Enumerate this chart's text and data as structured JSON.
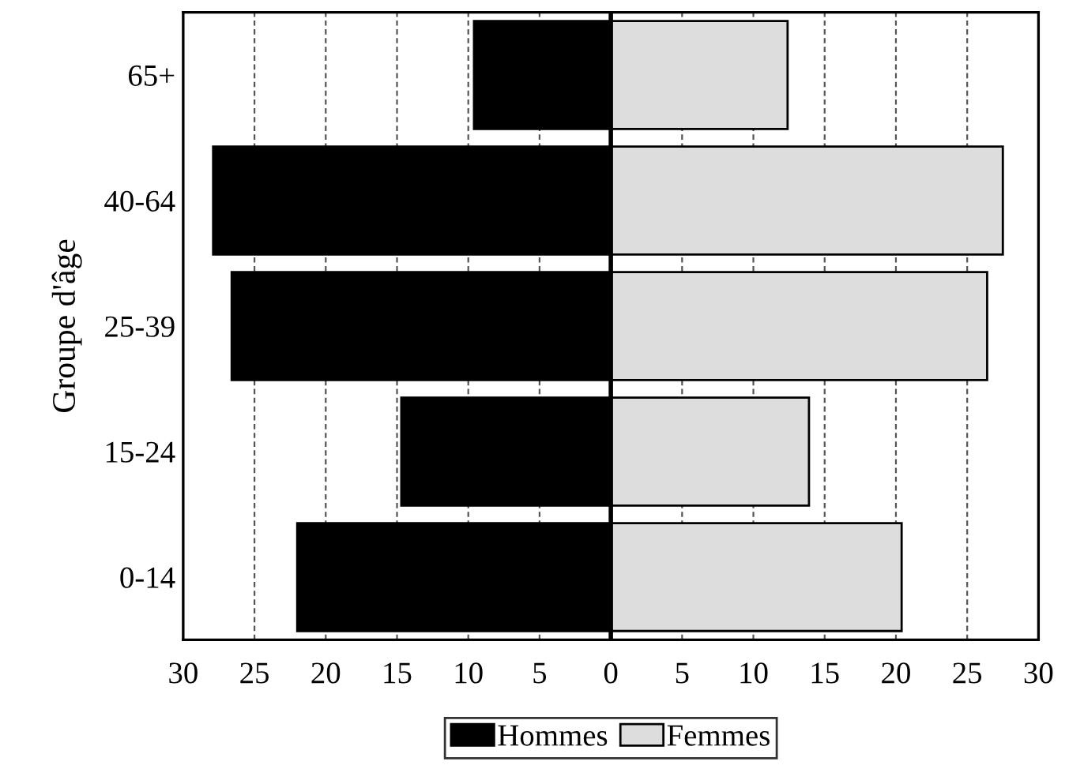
{
  "chart_data": {
    "type": "bar",
    "orientation": "horizontal",
    "stacked": true,
    "ylabel": "Groupe d'âge",
    "categories": [
      "65+",
      "40-64",
      "25-39",
      "15-24",
      "0-14"
    ],
    "series": [
      {
        "name": "Hommes",
        "color": "#000000",
        "values": [
          -9.6,
          -27.9,
          -26.6,
          -14.7,
          -22.0
        ]
      },
      {
        "name": "Femmes",
        "color": "#dddddd",
        "values": [
          12.4,
          27.5,
          26.4,
          13.9,
          20.4
        ]
      }
    ],
    "xlim": [
      -30,
      30
    ],
    "xticks": [
      {
        "value": -30,
        "label": "30"
      },
      {
        "value": -25,
        "label": "25"
      },
      {
        "value": -20,
        "label": "20"
      },
      {
        "value": -15,
        "label": "15"
      },
      {
        "value": -10,
        "label": "10"
      },
      {
        "value": -5,
        "label": "5"
      },
      0,
      5,
      10,
      15,
      20,
      25,
      30
    ],
    "ref_lines": [
      {
        "axis": "x",
        "value": 0,
        "color": "#000000",
        "line_style": "solid"
      }
    ],
    "grid": "x",
    "legend": "bottom"
  }
}
